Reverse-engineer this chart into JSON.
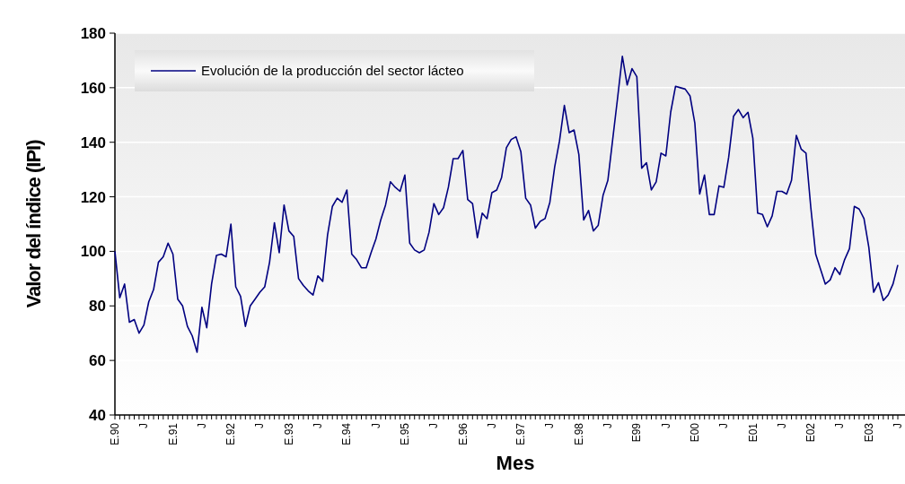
{
  "chart_data": {
    "type": "line",
    "ylabel": "Valor del índice (IPI)",
    "xlabel": "Mes",
    "categories": [
      "E.90",
      null,
      null,
      null,
      null,
      null,
      "J",
      null,
      null,
      null,
      null,
      null,
      "E.91",
      null,
      null,
      null,
      null,
      null,
      "J",
      null,
      null,
      null,
      null,
      null,
      "E.92",
      null,
      null,
      null,
      null,
      null,
      "J",
      null,
      null,
      null,
      null,
      null,
      "E.93",
      null,
      null,
      null,
      null,
      null,
      "J",
      null,
      null,
      null,
      null,
      null,
      "E.94",
      null,
      null,
      null,
      null,
      null,
      "J",
      null,
      null,
      null,
      null,
      null,
      "E.95",
      null,
      null,
      null,
      null,
      null,
      "J",
      null,
      null,
      null,
      null,
      null,
      "E.96",
      null,
      null,
      null,
      null,
      null,
      "J",
      null,
      null,
      null,
      null,
      null,
      "E.97",
      null,
      null,
      null,
      null,
      null,
      "J",
      null,
      null,
      null,
      null,
      null,
      "E.98",
      null,
      null,
      null,
      null,
      null,
      "J",
      null,
      null,
      null,
      null,
      null,
      "E99",
      null,
      null,
      null,
      null,
      null,
      "J",
      null,
      null,
      null,
      null,
      null,
      "E00",
      null,
      null,
      null,
      null,
      null,
      "J",
      null,
      null,
      null,
      null,
      null,
      "E01",
      null,
      null,
      null,
      null,
      null,
      "J",
      null,
      null,
      null,
      null,
      null,
      "E02",
      null,
      null,
      null,
      null,
      null,
      "J",
      null,
      null,
      null,
      null,
      null,
      "E03",
      null,
      null,
      null,
      null,
      null,
      "J"
    ],
    "series": [
      {
        "name": "Evolución de la producción del sector lácteo",
        "color": "#000080",
        "values": [
          100,
          83,
          88,
          74,
          75,
          70,
          73,
          81.5,
          86,
          96,
          98,
          103,
          99,
          82.5,
          80,
          72.5,
          69,
          63,
          79.5,
          72,
          88,
          98.5,
          99,
          98,
          110,
          87,
          83.5,
          72.5,
          80,
          82.5,
          85,
          87,
          96,
          110.5,
          99.5,
          117,
          107.5,
          105.5,
          90,
          87.5,
          85.5,
          84,
          91,
          89,
          106,
          116.5,
          119.5,
          118,
          122.5,
          99,
          97,
          94,
          94,
          99.5,
          104.5,
          111.5,
          117,
          125.5,
          123.5,
          122,
          128,
          103,
          100.5,
          99.5,
          100.5,
          107,
          117.5,
          113.5,
          116,
          123.5,
          134,
          134,
          137,
          119,
          117.5,
          105,
          114,
          112,
          121.5,
          122.5,
          127,
          138,
          141,
          142,
          136.5,
          119.5,
          117,
          108.5,
          111,
          112,
          118,
          131,
          140.5,
          153.5,
          143.5,
          144.5,
          135.5,
          111.5,
          115,
          107.5,
          109.5,
          120.5,
          126,
          141,
          156,
          171.5,
          161,
          167,
          164,
          130.5,
          132.5,
          122.5,
          125.5,
          136,
          135,
          151,
          160.5,
          160,
          159.5,
          157,
          147,
          121,
          128,
          113.5,
          113.5,
          124,
          123.5,
          134.5,
          149.5,
          152,
          149,
          151,
          141.5,
          114,
          113.5,
          109,
          113,
          122,
          122,
          121,
          126,
          142.5,
          137.5,
          136,
          116,
          99,
          93.5,
          88,
          89.5,
          94,
          91.5,
          97,
          101,
          116.5,
          115.5,
          112,
          101.5,
          85,
          88.5,
          82,
          84,
          88,
          95
        ]
      }
    ],
    "ylim": [
      40,
      180
    ],
    "yticks": [
      40,
      60,
      80,
      100,
      120,
      140,
      160,
      180
    ],
    "grid": "y",
    "legend": "top left"
  }
}
